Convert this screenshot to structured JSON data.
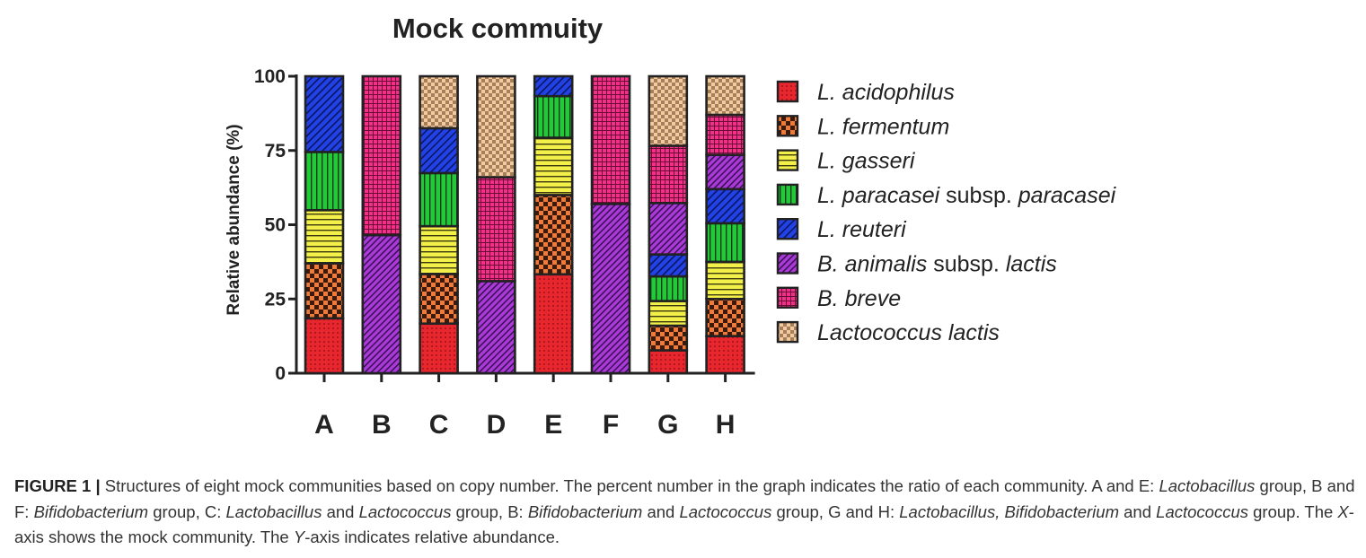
{
  "chart_data": {
    "type": "bar",
    "stacked": true,
    "title": "Mock commuity",
    "xlabel": "",
    "ylabel": "Relative abundance (%)",
    "ylim": [
      0,
      100
    ],
    "yticks": [
      "0",
      "25",
      "50",
      "75",
      "100"
    ],
    "categories": [
      "A",
      "B",
      "C",
      "D",
      "E",
      "F",
      "G",
      "H"
    ],
    "legend_position": "right",
    "series": [
      {
        "name": "L. acidophilus",
        "name_parts": [
          {
            "t": "L. acidophilus",
            "i": true
          }
        ],
        "color": "#e8262e",
        "pattern": "red-dots",
        "values": [
          18.5,
          0,
          16.7,
          0,
          33.3,
          0,
          7.7,
          12.5
        ]
      },
      {
        "name": "L. fermentum",
        "name_parts": [
          {
            "t": "L. fermentum",
            "i": true
          }
        ],
        "color": "#f07a3a",
        "pattern": "orange-check",
        "values": [
          18.5,
          0,
          16.7,
          0,
          26.7,
          0,
          8.3,
          12.5
        ]
      },
      {
        "name": "L. gasseri",
        "name_parts": [
          {
            "t": "L. gasseri",
            "i": true
          }
        ],
        "color": "#f4f04a",
        "pattern": "yellow-hlines",
        "values": [
          17.9,
          0,
          16.1,
          0,
          19.3,
          0,
          8.3,
          12.5
        ]
      },
      {
        "name": "L. paracasei subsp. paracasei",
        "name_parts": [
          {
            "t": "L. paracasei",
            "i": true
          },
          {
            "t": " subsp. ",
            "i": false
          },
          {
            "t": "paracasei",
            "i": true
          }
        ],
        "color": "#24c93a",
        "pattern": "green-vlines",
        "values": [
          19.6,
          0,
          17.9,
          0,
          14.0,
          0,
          8.3,
          13.0
        ]
      },
      {
        "name": "L. reuteri",
        "name_parts": [
          {
            "t": "L. reuteri",
            "i": true
          }
        ],
        "color": "#2242e6",
        "pattern": "blue-diag",
        "values": [
          25.5,
          0,
          15.1,
          0,
          6.7,
          0,
          7.4,
          11.5
        ]
      },
      {
        "name": "B. animalis subsp. lactis",
        "name_parts": [
          {
            "t": "B. animalis",
            "i": true
          },
          {
            "t": " subsp. ",
            "i": false
          },
          {
            "t": "lactis",
            "i": true
          }
        ],
        "color": "#a93ad6",
        "pattern": "purple-diag",
        "values": [
          0,
          46.5,
          0,
          31.0,
          0,
          57.0,
          17.3,
          11.5
        ]
      },
      {
        "name": "B. breve",
        "name_parts": [
          {
            "t": "B. breve",
            "i": true
          }
        ],
        "color": "#f2308a",
        "pattern": "pink-grid",
        "values": [
          0,
          53.5,
          0,
          35.0,
          0,
          43.0,
          19.3,
          13.5
        ]
      },
      {
        "name": "Lactococcus lactis",
        "name_parts": [
          {
            "t": "Lactococcus lactis",
            "i": true
          }
        ],
        "color": "#f3c9a0",
        "pattern": "peach-check",
        "values": [
          0,
          0,
          17.5,
          34.0,
          0,
          0,
          23.4,
          13.0
        ]
      }
    ]
  },
  "caption": {
    "label": "FIGURE 1 |",
    "segments": [
      {
        "t": " Structures of eight mock communities based on copy number. The percent number in the graph indicates the ratio of each community. A and E: ",
        "i": false
      },
      {
        "t": "Lactobacillus",
        "i": true
      },
      {
        "t": " group, B and F: ",
        "i": false
      },
      {
        "t": "Bifidobacterium",
        "i": true
      },
      {
        "t": " group, C: ",
        "i": false
      },
      {
        "t": "Lactobacillus",
        "i": true
      },
      {
        "t": " and ",
        "i": false
      },
      {
        "t": "Lactococcus",
        "i": true
      },
      {
        "t": " group, B: ",
        "i": false
      },
      {
        "t": "Bifidobacterium",
        "i": true
      },
      {
        "t": " and ",
        "i": false
      },
      {
        "t": "Lactococcus",
        "i": true
      },
      {
        "t": " group, G and H: ",
        "i": false
      },
      {
        "t": "Lactobacillus, Bifidobacterium",
        "i": true
      },
      {
        "t": " and ",
        "i": false
      },
      {
        "t": "Lactococcus",
        "i": true
      },
      {
        "t": " group. The ",
        "i": false
      },
      {
        "t": "X",
        "i": true
      },
      {
        "t": "-axis shows the mock community. The ",
        "i": false
      },
      {
        "t": "Y",
        "i": true
      },
      {
        "t": "-axis indicates relative abundance.",
        "i": false
      }
    ]
  }
}
